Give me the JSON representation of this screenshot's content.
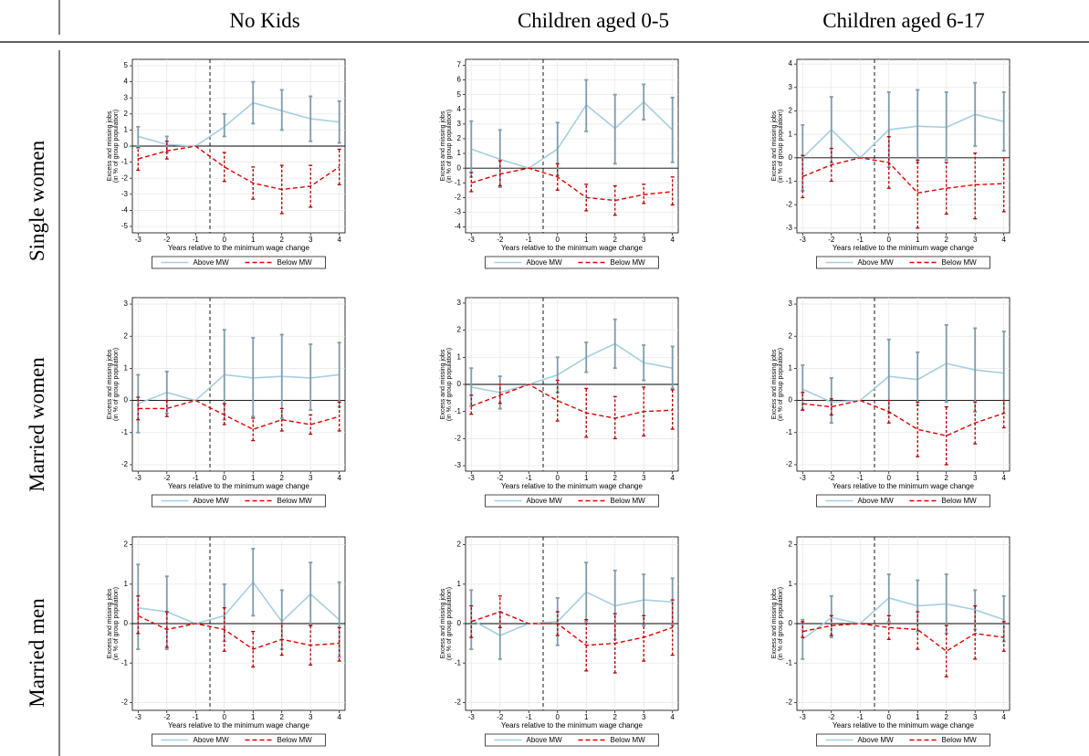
{
  "column_headers": [
    "No Kids",
    "Children aged 0-5",
    "Children aged 6-17"
  ],
  "row_labels": [
    "Single women",
    "Married women",
    "Married men"
  ],
  "chart_data": [
    {
      "type": "line",
      "ylabel": [
        "Excess and missing jobs",
        "(in % of group population)"
      ],
      "xlabel": "Years relative to the minimum wage change",
      "x": [
        -3,
        -2,
        -1,
        0,
        1,
        2,
        3,
        4
      ],
      "xlim": [
        -3.2,
        4.2
      ],
      "xticks": [
        -3,
        -2,
        -1,
        0,
        1,
        2,
        3,
        4
      ],
      "ylim": [
        -5.4,
        5.4
      ],
      "yticks": [
        -5,
        -4,
        -3,
        -2,
        -1,
        0,
        1,
        2,
        3,
        4,
        5
      ],
      "event_line": -0.5,
      "grid": true,
      "series": [
        {
          "name": "Above MW",
          "color": "#a6cfe0",
          "error_color": "#7f9cab",
          "dash": false,
          "values": [
            0.6,
            0.1,
            0,
            1.2,
            2.7,
            2.2,
            1.7,
            1.5
          ],
          "ci_low": [
            0,
            -0.4,
            null,
            0.6,
            1.4,
            1,
            0.3,
            0.2
          ],
          "ci_high": [
            1.2,
            0.6,
            null,
            2,
            4,
            3.5,
            3.1,
            2.8
          ]
        },
        {
          "name": "Below MW",
          "color": "#e00000",
          "error_color": "#b00000",
          "dash": true,
          "values": [
            -0.8,
            -0.3,
            0,
            -1.3,
            -2.3,
            -2.7,
            -2.5,
            -1.3
          ],
          "ci_low": [
            -1.5,
            -0.8,
            null,
            -2.2,
            -3.3,
            -4.2,
            -3.8,
            -2.4
          ],
          "ci_high": [
            -0.1,
            0.3,
            null,
            -0.4,
            -1.3,
            -1.2,
            -1.2,
            -0.2
          ]
        }
      ]
    },
    {
      "type": "line",
      "ylabel": [
        "Excess and missing jobs",
        "(in % of group population)"
      ],
      "xlabel": "Years relative to the minimum wage change",
      "x": [
        -3,
        -2,
        -1,
        0,
        1,
        2,
        3,
        4
      ],
      "xlim": [
        -3.2,
        4.2
      ],
      "xticks": [
        -3,
        -2,
        -1,
        0,
        1,
        2,
        3,
        4
      ],
      "ylim": [
        -4.4,
        7.4
      ],
      "yticks": [
        -4,
        -3,
        -2,
        -1,
        0,
        1,
        2,
        3,
        4,
        5,
        6,
        7
      ],
      "event_line": -0.5,
      "grid": true,
      "series": [
        {
          "name": "Above MW",
          "color": "#a6cfe0",
          "error_color": "#7f9cab",
          "dash": false,
          "values": [
            1.3,
            0.6,
            0,
            1.3,
            4.3,
            2.7,
            4.5,
            2.6
          ],
          "ci_low": [
            -0.6,
            -1.3,
            null,
            -0.5,
            2.5,
            0.3,
            3.3,
            0.4
          ],
          "ci_high": [
            3.2,
            2.6,
            null,
            3.1,
            6,
            5,
            5.7,
            4.8
          ]
        },
        {
          "name": "Below MW",
          "color": "#e00000",
          "error_color": "#b00000",
          "dash": true,
          "values": [
            -1,
            -0.4,
            0,
            -0.6,
            -2,
            -2.2,
            -1.8,
            -1.6
          ],
          "ci_low": [
            -1.6,
            -1.2,
            null,
            -1.5,
            -2.9,
            -3.2,
            -2.4,
            -2.5
          ],
          "ci_high": [
            -0.3,
            0.5,
            null,
            0.3,
            -1.1,
            -1.2,
            -1.1,
            -0.6
          ]
        }
      ]
    },
    {
      "type": "line",
      "ylabel": [
        "Excess and missing jobs",
        "(in % of group population)"
      ],
      "xlabel": "Years relative to the minimum wage change",
      "x": [
        -3,
        -2,
        -1,
        0,
        1,
        2,
        3,
        4
      ],
      "xlim": [
        -3.2,
        4.2
      ],
      "xticks": [
        -3,
        -2,
        -1,
        0,
        1,
        2,
        3,
        4
      ],
      "ylim": [
        -3.2,
        4.2
      ],
      "yticks": [
        -3,
        -2,
        -1,
        0,
        1,
        2,
        3,
        4
      ],
      "event_line": -0.5,
      "grid": true,
      "series": [
        {
          "name": "Above MW",
          "color": "#a6cfe0",
          "error_color": "#7f9cab",
          "dash": false,
          "values": [
            0,
            1.2,
            0,
            1.2,
            1.35,
            1.3,
            1.85,
            1.55
          ],
          "ci_low": [
            -1.4,
            -0.2,
            null,
            -0.4,
            -0.2,
            -0.1,
            0.5,
            0.3
          ],
          "ci_high": [
            1.4,
            2.6,
            null,
            2.8,
            2.9,
            2.8,
            3.2,
            2.8
          ]
        },
        {
          "name": "Below MW",
          "color": "#e00000",
          "error_color": "#b00000",
          "dash": true,
          "values": [
            -0.8,
            -0.3,
            0,
            -0.2,
            -1.5,
            -1.3,
            -1.15,
            -1.1
          ],
          "ci_low": [
            -1.7,
            -1,
            null,
            -1.3,
            -3,
            -2.4,
            -2.6,
            -2.3
          ],
          "ci_high": [
            0.1,
            0.4,
            null,
            0.9,
            -0.1,
            -0.2,
            0.2,
            0
          ]
        }
      ]
    },
    {
      "type": "line",
      "ylabel": [
        "Excess and missing jobs",
        "(in % of group population)"
      ],
      "xlabel": "Years relative to the minimum wage change",
      "x": [
        -3,
        -2,
        -1,
        0,
        1,
        2,
        3,
        4
      ],
      "xlim": [
        -3.2,
        4.2
      ],
      "xticks": [
        -3,
        -2,
        -1,
        0,
        1,
        2,
        3,
        4
      ],
      "ylim": [
        -2.2,
        3.2
      ],
      "yticks": [
        -2,
        -1,
        0,
        1,
        2,
        3
      ],
      "event_line": -0.5,
      "grid": true,
      "series": [
        {
          "name": "Above MW",
          "color": "#a6cfe0",
          "error_color": "#7f9cab",
          "dash": false,
          "values": [
            -0.1,
            0.25,
            0,
            0.8,
            0.7,
            0.75,
            0.7,
            0.8
          ],
          "ci_low": [
            -1,
            -0.4,
            null,
            -0.6,
            -0.5,
            -0.55,
            -0.3,
            -0.2
          ],
          "ci_high": [
            0.8,
            0.9,
            null,
            2.2,
            1.95,
            2.05,
            1.75,
            1.8
          ]
        },
        {
          "name": "Below MW",
          "color": "#e00000",
          "error_color": "#b00000",
          "dash": true,
          "values": [
            -0.25,
            -0.25,
            0,
            -0.45,
            -0.9,
            -0.6,
            -0.75,
            -0.5
          ],
          "ci_low": [
            -0.6,
            -0.5,
            null,
            -0.75,
            -1.25,
            -0.95,
            -1.05,
            -0.95
          ],
          "ci_high": [
            0.1,
            0,
            null,
            -0.1,
            -0.55,
            -0.25,
            -0.45,
            -0.05
          ]
        }
      ]
    },
    {
      "type": "line",
      "ylabel": [
        "Excess and missing jobs",
        "(in % of group population)"
      ],
      "xlabel": "Years relative to the minimum wage change",
      "x": [
        -3,
        -2,
        -1,
        0,
        1,
        2,
        3,
        4
      ],
      "xlim": [
        -3.2,
        4.2
      ],
      "xticks": [
        -3,
        -2,
        -1,
        0,
        1,
        2,
        3,
        4
      ],
      "ylim": [
        -3.2,
        3.2
      ],
      "yticks": [
        -3,
        -2,
        -1,
        0,
        1,
        2,
        3
      ],
      "event_line": -0.5,
      "grid": true,
      "series": [
        {
          "name": "Above MW",
          "color": "#a6cfe0",
          "error_color": "#7f9cab",
          "dash": false,
          "values": [
            -0.1,
            -0.3,
            0,
            0.35,
            1,
            1.5,
            0.8,
            0.6
          ],
          "ci_low": [
            -0.8,
            -0.9,
            null,
            -0.3,
            0.45,
            0.6,
            0.15,
            -0.15
          ],
          "ci_high": [
            0.6,
            0.3,
            null,
            1,
            1.55,
            2.4,
            1.45,
            1.4
          ]
        },
        {
          "name": "Below MW",
          "color": "#e00000",
          "error_color": "#b00000",
          "dash": true,
          "values": [
            -0.8,
            -0.4,
            0,
            -0.6,
            -1.05,
            -1.25,
            -1,
            -0.95
          ],
          "ci_low": [
            -1.1,
            -0.7,
            null,
            -1.35,
            -1.95,
            -2,
            -1.9,
            -1.65
          ],
          "ci_high": [
            -0.4,
            0,
            null,
            0.15,
            -0.15,
            -0.45,
            -0.1,
            -0.2
          ]
        }
      ]
    },
    {
      "type": "line",
      "ylabel": [
        "Excess and missing jobs",
        "(in % of group population)"
      ],
      "xlabel": "Years relative to the minimum wage change",
      "x": [
        -3,
        -2,
        -1,
        0,
        1,
        2,
        3,
        4
      ],
      "xlim": [
        -3.2,
        4.2
      ],
      "xticks": [
        -3,
        -2,
        -1,
        0,
        1,
        2,
        3,
        4
      ],
      "ylim": [
        -2.2,
        3.2
      ],
      "yticks": [
        -2,
        -1,
        0,
        1,
        2,
        3
      ],
      "event_line": -0.5,
      "grid": true,
      "series": [
        {
          "name": "Above MW",
          "color": "#a6cfe0",
          "error_color": "#7f9cab",
          "dash": false,
          "values": [
            0.35,
            -0.05,
            0,
            0.75,
            0.65,
            1.15,
            0.95,
            0.85
          ],
          "ci_low": [
            -0.3,
            -0.7,
            null,
            -0.4,
            -0.15,
            -0.05,
            -0.35,
            -0.4
          ],
          "ci_high": [
            1.1,
            0.7,
            null,
            1.9,
            1.5,
            2.35,
            2.25,
            2.15
          ]
        },
        {
          "name": "Below MW",
          "color": "#e00000",
          "error_color": "#b00000",
          "dash": true,
          "values": [
            -0.1,
            -0.2,
            0,
            -0.35,
            -0.9,
            -1.1,
            -0.7,
            -0.4
          ],
          "ci_low": [
            -0.3,
            -0.45,
            null,
            -0.7,
            -1.75,
            -2,
            -1.35,
            -0.85
          ],
          "ci_high": [
            0.25,
            0.05,
            null,
            0,
            -0.05,
            -0.2,
            -0.05,
            0
          ]
        }
      ]
    },
    {
      "type": "line",
      "ylabel": [
        "Excess and missing jobs",
        "(in % of group population)"
      ],
      "xlabel": "Years relative to the minimum wage change",
      "x": [
        -3,
        -2,
        -1,
        0,
        1,
        2,
        3,
        4
      ],
      "xlim": [
        -3.2,
        4.2
      ],
      "xticks": [
        -3,
        -2,
        -1,
        0,
        1,
        2,
        3,
        4
      ],
      "ylim": [
        -2.2,
        2.2
      ],
      "yticks": [
        -2,
        -1,
        0,
        1,
        2
      ],
      "event_line": -0.5,
      "grid": true,
      "series": [
        {
          "name": "Above MW",
          "color": "#a6cfe0",
          "error_color": "#7f9cab",
          "dash": false,
          "values": [
            0.4,
            0.3,
            0,
            0.2,
            1.05,
            0.05,
            0.75,
            0.1
          ],
          "ci_low": [
            -0.65,
            -0.65,
            null,
            -0.45,
            0.2,
            -0.65,
            -0.05,
            -0.85
          ],
          "ci_high": [
            1.5,
            1.2,
            null,
            1,
            1.9,
            0.85,
            1.55,
            1.05
          ]
        },
        {
          "name": "Below MW",
          "color": "#e00000",
          "error_color": "#b00000",
          "dash": true,
          "values": [
            0.2,
            -0.15,
            0,
            -0.15,
            -0.65,
            -0.4,
            -0.55,
            -0.5
          ],
          "ci_low": [
            -0.25,
            -0.6,
            null,
            -0.7,
            -1.1,
            -0.8,
            -1.05,
            -0.95
          ],
          "ci_high": [
            0.7,
            0.3,
            null,
            0.4,
            -0.2,
            0,
            -0.05,
            -0.1
          ]
        }
      ]
    },
    {
      "type": "line",
      "ylabel": [
        "Excess and missing jobs",
        "(in % of group population)"
      ],
      "xlabel": "Years relative to the minimum wage change",
      "x": [
        -3,
        -2,
        -1,
        0,
        1,
        2,
        3,
        4
      ],
      "xlim": [
        -3.2,
        4.2
      ],
      "xticks": [
        -3,
        -2,
        -1,
        0,
        1,
        2,
        3,
        4
      ],
      "ylim": [
        -2.2,
        2.2
      ],
      "yticks": [
        -2,
        -1,
        0,
        1,
        2
      ],
      "event_line": -0.5,
      "grid": true,
      "series": [
        {
          "name": "Above MW",
          "color": "#a6cfe0",
          "error_color": "#7f9cab",
          "dash": false,
          "values": [
            0.1,
            -0.3,
            0,
            0.05,
            0.8,
            0.45,
            0.6,
            0.55
          ],
          "ci_low": [
            -0.65,
            -0.9,
            null,
            -0.55,
            0.05,
            -0.4,
            -0.05,
            -0.05
          ],
          "ci_high": [
            0.85,
            0.3,
            null,
            0.65,
            1.55,
            1.35,
            1.25,
            1.15
          ]
        },
        {
          "name": "Below MW",
          "color": "#e00000",
          "error_color": "#b00000",
          "dash": true,
          "values": [
            0.05,
            0.3,
            0,
            0,
            -0.55,
            -0.5,
            -0.35,
            -0.1
          ],
          "ci_low": [
            -0.35,
            -0.1,
            null,
            -0.3,
            -1.2,
            -1.25,
            -0.95,
            -0.8
          ],
          "ci_high": [
            0.45,
            0.7,
            null,
            0.3,
            0.1,
            0.25,
            0.2,
            0.6
          ]
        }
      ]
    },
    {
      "type": "line",
      "ylabel": [
        "Excess and missing jobs",
        "(in % of group population)"
      ],
      "xlabel": "Years relative to the minimum wage change",
      "x": [
        -3,
        -2,
        -1,
        0,
        1,
        2,
        3,
        4
      ],
      "xlim": [
        -3.2,
        4.2
      ],
      "xticks": [
        -3,
        -2,
        -1,
        0,
        1,
        2,
        3,
        4
      ],
      "ylim": [
        -2.2,
        2.2
      ],
      "yticks": [
        -2,
        -1,
        0,
        1,
        2
      ],
      "event_line": -0.5,
      "grid": true,
      "series": [
        {
          "name": "Above MW",
          "color": "#a6cfe0",
          "error_color": "#7f9cab",
          "dash": false,
          "values": [
            -0.4,
            0.15,
            0,
            0.65,
            0.45,
            0.5,
            0.35,
            0.1
          ],
          "ci_low": [
            -0.9,
            -0.35,
            null,
            0.05,
            -0.2,
            -0.25,
            -0.15,
            -0.45
          ],
          "ci_high": [
            0.1,
            0.7,
            null,
            1.25,
            1.1,
            1.25,
            0.85,
            0.7
          ]
        },
        {
          "name": "Below MW",
          "color": "#e00000",
          "error_color": "#b00000",
          "dash": true,
          "values": [
            -0.2,
            -0.05,
            0,
            -0.1,
            -0.15,
            -0.7,
            -0.25,
            -0.35
          ],
          "ci_low": [
            -0.35,
            -0.3,
            null,
            -0.4,
            -0.65,
            -1.35,
            -0.9,
            -0.7
          ],
          "ci_high": [
            0.05,
            0.2,
            null,
            0.2,
            0.3,
            -0.05,
            0.45,
            0.05
          ]
        }
      ]
    }
  ]
}
